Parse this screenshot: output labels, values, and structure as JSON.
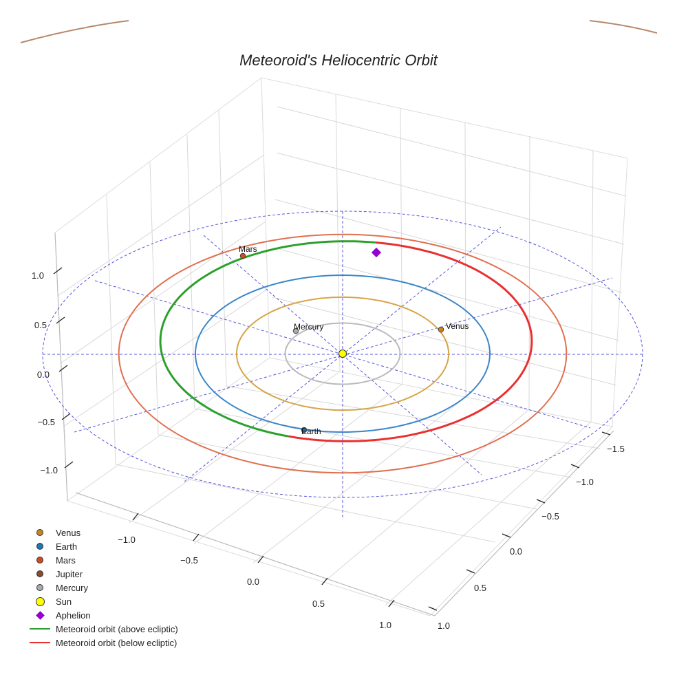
{
  "chart_data": {
    "type": "line",
    "title": "Meteoroid's Heliocentric Orbit",
    "x_ticks": [
      "−1.5",
      "−1.0",
      "−0.5",
      "0.0",
      "0.5",
      "1.0"
    ],
    "y_ticks": [
      "−1.0",
      "−0.5",
      "0.0",
      "0.5",
      "1.0"
    ],
    "z_ticks": [
      "1.0",
      "0.5",
      "0.0",
      "−0.5",
      "−1.0"
    ],
    "planets": [
      {
        "name": "Mercury",
        "label": "Mercury",
        "semi_major_au": 0.39,
        "color": "#aaaaaa"
      },
      {
        "name": "Venus",
        "label": "Venus",
        "semi_major_au": 0.72,
        "color": "#c98620"
      },
      {
        "name": "Earth",
        "label": "Earth",
        "semi_major_au": 1.0,
        "color": "#1f77b4"
      },
      {
        "name": "Mars",
        "label": "Mars",
        "semi_major_au": 1.52,
        "color": "#d44a1f"
      },
      {
        "name": "Jupiter",
        "label": "",
        "semi_major_au": 5.2,
        "color": "#8b4a2a"
      }
    ],
    "orbit_colors": {
      "Mercury": "#bbbbbb",
      "Venus": "#d6a54a",
      "Earth": "#3a86c8",
      "Mars": "#e07050",
      "Jupiter": "#b8876a"
    },
    "meteoroid": {
      "above_color": "#2ca02c",
      "below_color": "#e83030",
      "perihelion_au": 1.0,
      "aphelion_au": 1.5
    },
    "aphelion_marker_color": "#9400d3",
    "sun_color": "#ffff00",
    "grid": true
  },
  "legend": [
    {
      "label": "Venus",
      "type": "dot",
      "color": "#c98620"
    },
    {
      "label": "Earth",
      "type": "dot",
      "color": "#1f77b4"
    },
    {
      "label": "Mars",
      "type": "dot",
      "color": "#d44a1f"
    },
    {
      "label": "Jupiter",
      "type": "dot",
      "color": "#8b4a2a"
    },
    {
      "label": "Mercury",
      "type": "dot",
      "color": "#aaaaaa"
    },
    {
      "label": "Sun",
      "type": "sun",
      "color": "#ffff00"
    },
    {
      "label": "Aphelion",
      "type": "diamond",
      "color": "#9400d3"
    },
    {
      "label": "Meteoroid orbit (above ecliptic)",
      "type": "line",
      "color": "#2ca02c"
    },
    {
      "label": "Meteoroid orbit (below ecliptic)",
      "type": "line",
      "color": "#e83030"
    }
  ]
}
